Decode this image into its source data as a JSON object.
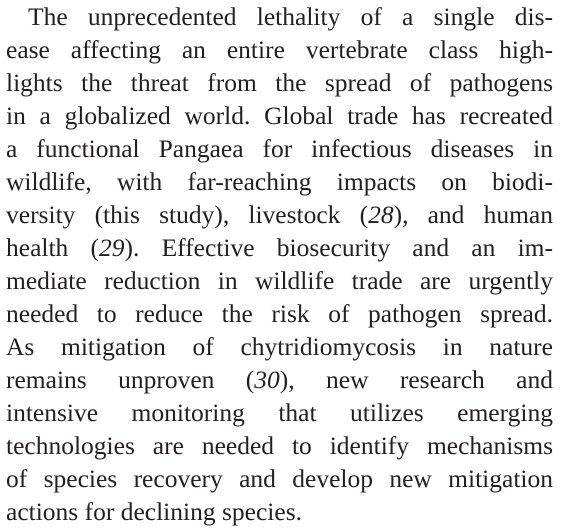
{
  "paragraph": {
    "lines": [
      [
        "The unprecedented lethality of a single dis-"
      ],
      [
        "ease affecting an entire vertebrate class high-"
      ],
      [
        "lights the threat from the spread of pathogens"
      ],
      [
        "in a globalized world. Global trade has recreated"
      ],
      [
        "a functional Pangaea for infectious diseases in"
      ],
      [
        "wildlife, with far-reaching impacts on biodi-"
      ],
      [
        "versity (this study), livestock (",
        {
          "italic": "28"
        },
        "), and human"
      ],
      [
        "health (",
        {
          "italic": "29"
        },
        "). Effective biosecurity and an im-"
      ],
      [
        "mediate reduction in wildlife trade are urgently"
      ],
      [
        "needed to reduce the risk of pathogen spread."
      ],
      [
        "As mitigation of chytridiomycosis in nature"
      ],
      [
        "remains unproven (",
        {
          "italic": "30"
        },
        "), new research and"
      ],
      [
        "intensive monitoring that utilizes emerging"
      ],
      [
        "technologies are needed to identify mechanisms"
      ],
      [
        "of species recovery and develop new mitigation"
      ],
      [
        "actions for declining species."
      ]
    ]
  }
}
